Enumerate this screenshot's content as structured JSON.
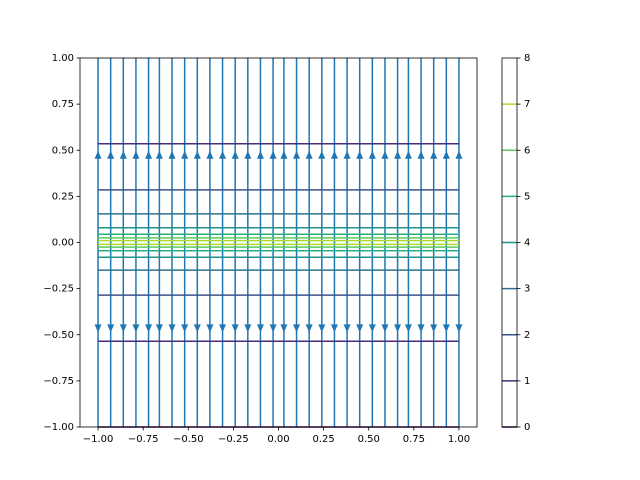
{
  "chart_data": {
    "type": "contour",
    "xlim": [
      -1.1,
      1.1
    ],
    "ylim": [
      -1,
      1
    ],
    "xticks": [
      {
        "value": -1,
        "label": "−1.00"
      },
      {
        "value": -0.75,
        "label": "−0.75"
      },
      {
        "value": -0.5,
        "label": "−0.50"
      },
      {
        "value": -0.25,
        "label": "−0.25"
      },
      {
        "value": 0,
        "label": "0.00"
      },
      {
        "value": 0.25,
        "label": "0.25"
      },
      {
        "value": 0.5,
        "label": "0.50"
      },
      {
        "value": 0.75,
        "label": "0.75"
      },
      {
        "value": 1,
        "label": "1.00"
      }
    ],
    "yticks": [
      {
        "value": -1,
        "label": "−1.00"
      },
      {
        "value": -0.75,
        "label": "−0.75"
      },
      {
        "value": -0.5,
        "label": "−0.50"
      },
      {
        "value": -0.25,
        "label": "−0.25"
      },
      {
        "value": 0,
        "label": "0.00"
      },
      {
        "value": 0.25,
        "label": "0.25"
      },
      {
        "value": 0.5,
        "label": "0.50"
      },
      {
        "value": 0.75,
        "label": "0.75"
      },
      {
        "value": 1,
        "label": "1.00"
      }
    ],
    "streamlines": {
      "color": "#1f77b4",
      "x": [
        -1,
        -0.93,
        -0.86,
        -0.79,
        -0.72,
        -0.66,
        -0.59,
        -0.52,
        -0.45,
        -0.38,
        -0.31,
        -0.24,
        -0.17,
        -0.1,
        -0.03,
        0.03,
        0.1,
        0.17,
        0.24,
        0.31,
        0.38,
        0.45,
        0.52,
        0.59,
        0.66,
        0.72,
        0.79,
        0.86,
        0.93,
        1
      ],
      "arrows_y": [
        0.47,
        -0.46
      ]
    },
    "contours": [
      {
        "level": 0,
        "color": "#440154",
        "y": [
          -1
        ]
      },
      {
        "level": 1,
        "color": "#472d7b",
        "y": [
          0.535,
          -0.535
        ]
      },
      {
        "level": 2,
        "color": "#3b528b",
        "y": [
          0.285,
          -0.285
        ]
      },
      {
        "level": 3,
        "color": "#2c728e",
        "y": [
          0.155,
          -0.15
        ]
      },
      {
        "level": 4,
        "color": "#21918c",
        "y": [
          0.08,
          -0.08
        ]
      },
      {
        "level": 5,
        "color": "#28ae80",
        "y": [
          0.045,
          -0.045
        ]
      },
      {
        "level": 6,
        "color": "#5ec962",
        "y": [
          0.025,
          -0.025
        ]
      },
      {
        "level": 7,
        "color": "#addc30",
        "y": [
          0.01,
          -0.01
        ]
      }
    ],
    "colorbar": {
      "lim": [
        0,
        8
      ],
      "ticks": [
        0,
        1,
        2,
        3,
        4,
        5,
        6,
        7,
        8
      ]
    }
  }
}
